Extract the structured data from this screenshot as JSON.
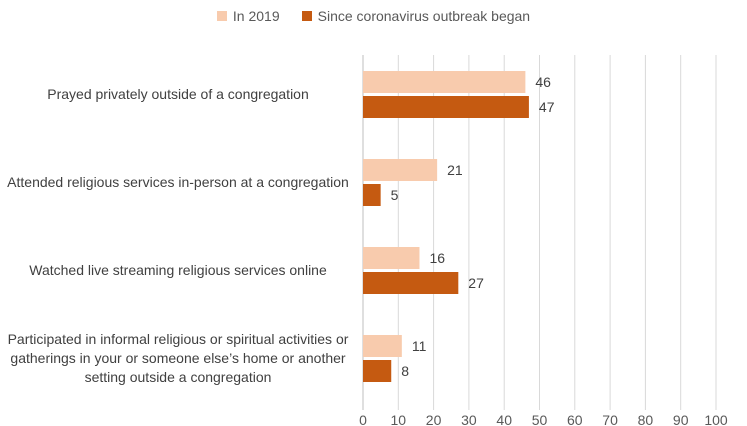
{
  "legend": [
    {
      "label": "In 2019",
      "color": "#F8CBAD"
    },
    {
      "label": "Since coronavirus outbreak began",
      "color": "#C55A11"
    }
  ],
  "chart_data": {
    "type": "bar",
    "orientation": "horizontal",
    "categories": [
      "Prayed privately outside of a congregation",
      "Attended religious services in-person at a congregation",
      "Watched live streaming religious services online",
      "Participated in informal religious or spiritual activities or gatherings in your or someone else’s home or another setting outside a congregation"
    ],
    "series": [
      {
        "name": "In 2019",
        "color": "#F8CBAD",
        "values": [
          46,
          21,
          16,
          11
        ]
      },
      {
        "name": "Since coronavirus outbreak began",
        "color": "#C55A11",
        "values": [
          47,
          5,
          27,
          8
        ]
      }
    ],
    "xlim": [
      0,
      100
    ],
    "xticks": [
      0,
      10,
      20,
      30,
      40,
      50,
      60,
      70,
      80,
      90,
      100
    ],
    "grid": true,
    "legend_position": "top"
  }
}
